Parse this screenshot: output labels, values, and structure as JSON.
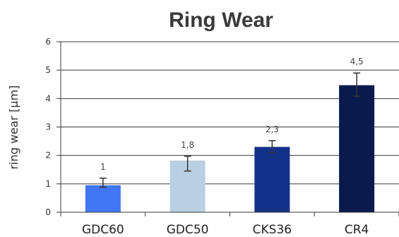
{
  "chart_data": {
    "type": "bar",
    "title": "Ring Wear",
    "xlabel": "",
    "ylabel": "ring wear [µm]",
    "ylim": [
      0,
      6
    ],
    "yticks": [
      0,
      1,
      2,
      3,
      4,
      5,
      6
    ],
    "grid": true,
    "legend": "none",
    "categories": [
      "GDC60",
      "GDC50",
      "CKS36",
      "CR4"
    ],
    "values": [
      0.95,
      1.82,
      2.3,
      4.47
    ],
    "data_labels": [
      "1",
      "1,8",
      "2,3",
      "4,5"
    ],
    "error_low": [
      0.88,
      1.45,
      2.1,
      4.08
    ],
    "error_high": [
      1.2,
      1.97,
      2.52,
      4.9
    ],
    "colors": [
      "#4277f4",
      "#b9d0e2",
      "#14318a",
      "#0b1a4d"
    ]
  }
}
